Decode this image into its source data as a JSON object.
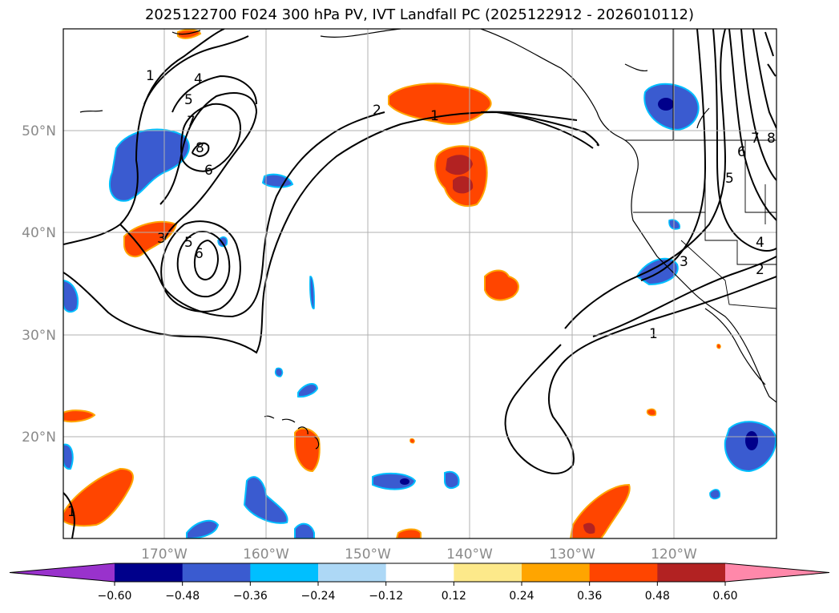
{
  "title": "2025122700 F024 300 hPa PV, IVT Landfall PC (2025122912 - 2026010112)",
  "lat_labels": [
    "50°N",
    "40°N",
    "30°N",
    "20°N"
  ],
  "lon_labels": [
    "170°W",
    "160°W",
    "150°W",
    "140°W",
    "130°W",
    "120°W"
  ],
  "colorbar": {
    "ticks": [
      "−0.60",
      "−0.48",
      "−0.36",
      "−0.24",
      "−0.12",
      "0.12",
      "0.24",
      "0.36",
      "0.48",
      "0.60"
    ],
    "colors": [
      "#9932cc",
      "#00008b",
      "#3a5bd0",
      "#00bfff",
      "#add8f6",
      "#ffffff",
      "#fde98a",
      "#ffa500",
      "#ff4500",
      "#b22222",
      "#ff88aa"
    ]
  },
  "contour_labels": [
    "1",
    "4",
    "5",
    "7",
    "8",
    "6",
    "3",
    "5",
    "6",
    "2",
    "1",
    "1",
    "3",
    "4",
    "2",
    "6",
    "7",
    "8",
    "5",
    "1"
  ]
}
